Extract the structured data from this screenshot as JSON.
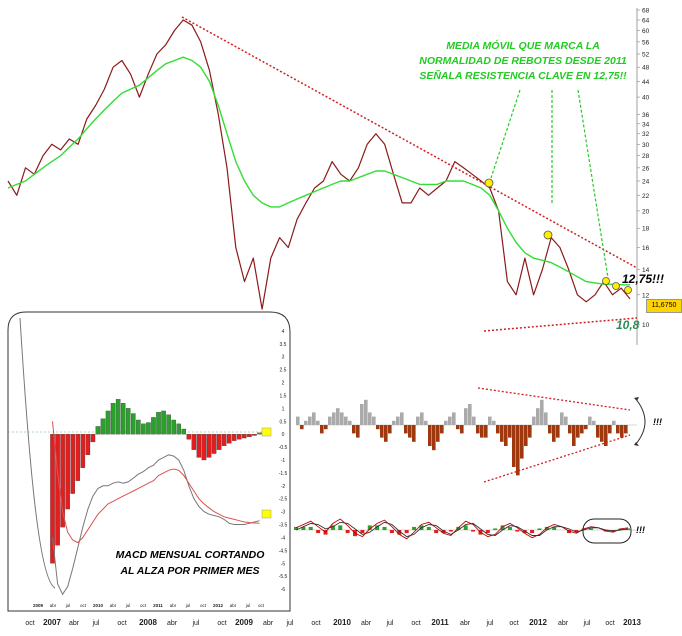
{
  "chart_data": [
    {
      "type": "line",
      "title": "",
      "subtitle": "",
      "xlabel": "",
      "ylabel": "",
      "y_scale": "log",
      "ylim": [
        9,
        68
      ],
      "y_ticks": [
        10,
        12,
        14,
        16,
        18,
        20,
        22,
        24,
        26,
        28,
        30,
        32,
        34,
        36,
        40,
        44,
        48,
        52,
        56,
        60,
        64,
        68
      ],
      "x_tick_labels": [
        "oct",
        "2007",
        "abr",
        "jul",
        "oct",
        "2008",
        "abr",
        "jul",
        "oct",
        "2009",
        "abr",
        "jul",
        "oct",
        "2010",
        "abr",
        "jul",
        "oct",
        "2011",
        "abr",
        "jul",
        "oct",
        "2012",
        "abr",
        "jul",
        "oct",
        "2013"
      ],
      "grid": false,
      "last_price_label": "11,6750",
      "series": [
        {
          "values": [
            24,
            22,
            26,
            25,
            28,
            30,
            29,
            31,
            30,
            35,
            38,
            42,
            48,
            50,
            46,
            40,
            46,
            52,
            55,
            60,
            64,
            62,
            56,
            47,
            36,
            26,
            16,
            13,
            15,
            11,
            15,
            17,
            16,
            19,
            21,
            23,
            24,
            27,
            25,
            24,
            26,
            30,
            32,
            30,
            25,
            21,
            21,
            23,
            22,
            23,
            24,
            27,
            26,
            25,
            24,
            23,
            20,
            13,
            12,
            15,
            12,
            14,
            17,
            16,
            14,
            12,
            11.5,
            12,
            13,
            12,
            12.5,
            11.7
          ]
        },
        {
          "values": [
            23,
            23.5,
            24,
            25,
            26,
            27,
            28,
            29.5,
            31,
            33,
            35,
            37,
            39,
            41,
            42,
            43,
            45,
            47,
            49,
            50,
            51,
            50,
            48,
            44,
            38,
            32,
            27,
            24,
            22,
            21,
            20.5,
            20.5,
            21,
            21.5,
            22,
            22.5,
            23,
            23.5,
            24,
            24,
            24.5,
            25,
            25.5,
            25.5,
            25,
            24.5,
            24,
            23.5,
            23.5,
            23.5,
            24,
            24,
            24,
            23.5,
            23,
            22,
            20,
            18,
            16.5,
            15.5,
            15,
            14.8,
            14.6,
            14.2,
            13.8,
            13.4,
            13,
            12.9,
            12.8,
            12.8,
            12.75,
            12.75
          ]
        }
      ],
      "annotations": [
        "MEDIA MÓVIL QUE MARCA LA\nNORMALIDAD DE REBOTES DESDE 2011\nSEÑALA RESISTENCIA CLAVE EN 12,75!!",
        "12,75!!!",
        "10,8"
      ]
    },
    {
      "type": "bar",
      "title": "",
      "description_label": "MACD MENSUAL CORTANDO\nAL ALZA POR PRIMER MES",
      "ylim": [
        -6.5,
        4.5
      ],
      "y_ticks": [
        4,
        3.5,
        3,
        2.5,
        2,
        1.5,
        1,
        0.5,
        0,
        -0.5,
        -1,
        -1.5,
        -2,
        -2.5,
        -3,
        -3.5,
        -4,
        -4.5,
        -5,
        -5.5,
        -6
      ],
      "x_tick_labels": [
        "2009",
        "abr",
        "jul",
        "oct",
        "2010",
        "abr",
        "jul",
        "oct",
        "2011",
        "abr",
        "jul",
        "oct",
        "2012",
        "abr",
        "jul",
        "oct"
      ],
      "histogram": [
        -5.0,
        -4.3,
        -3.6,
        -2.9,
        -2.3,
        -1.8,
        -1.3,
        -0.8,
        -0.3,
        0.3,
        0.6,
        0.9,
        1.2,
        1.35,
        1.2,
        1.0,
        0.8,
        0.55,
        0.4,
        0.45,
        0.65,
        0.85,
        0.9,
        0.75,
        0.55,
        0.4,
        0.2,
        -0.2,
        -0.6,
        -0.9,
        -1.0,
        -0.9,
        -0.75,
        -0.6,
        -0.45,
        -0.35,
        -0.25,
        -0.2,
        -0.15,
        -0.1,
        -0.05,
        0.05
      ],
      "macd_line": [
        -4.0,
        -5.8,
        -6.2,
        -5.9,
        -5.2,
        -4.4,
        -3.6,
        -2.9,
        -2.4,
        -2.1,
        -2.0,
        -2.0,
        -1.9,
        -1.85,
        -1.9,
        -1.85,
        -1.7,
        -1.55,
        -1.45,
        -1.3,
        -1.2,
        -1.0,
        -0.9,
        -0.8,
        -0.85,
        -1.0,
        -1.4,
        -2.0,
        -2.5,
        -2.8,
        -3.0,
        -3.1,
        -3.15,
        -3.2,
        -3.3,
        -3.45,
        -3.5,
        -3.5,
        -3.5,
        -3.45,
        -3.4,
        -3.35
      ],
      "signal_line": [
        0.5,
        -1.5,
        -3.0,
        -3.8,
        -4.1,
        -4.2,
        -4.0,
        -3.7,
        -3.4,
        -3.1,
        -2.9,
        -2.7,
        -2.6,
        -2.5,
        -2.4,
        -2.3,
        -2.2,
        -2.1,
        -2.0,
        -1.9,
        -1.8,
        -1.6,
        -1.5,
        -1.4,
        -1.35,
        -1.4,
        -1.6,
        -1.9,
        -2.2,
        -2.5,
        -2.7,
        -2.85,
        -3.0,
        -3.1,
        -3.2,
        -3.25,
        -3.3,
        -3.35,
        -3.4,
        -3.42,
        -3.44,
        -3.45
      ],
      "markers": [
        "0.0",
        "-3.4"
      ],
      "colors": {
        "positive": "#2ca02c",
        "negative": "#e02020",
        "macd": "#777777",
        "signal": "#e05050"
      }
    },
    {
      "type": "bar",
      "title": "",
      "note": "!!!",
      "histogram": [
        2,
        -1,
        1,
        2,
        3,
        1,
        -2,
        -1,
        2,
        3,
        4,
        3,
        2,
        1,
        -2,
        -3,
        5,
        6,
        3,
        2,
        -1,
        -3,
        -4,
        -2,
        1,
        2,
        3,
        -2,
        -3,
        -4,
        2,
        3,
        1,
        -5,
        -6,
        -4,
        -2,
        1,
        2,
        3,
        -1,
        -2,
        4,
        5,
        2,
        -2,
        -3,
        -3,
        2,
        1,
        -2,
        -4,
        -5,
        -3,
        -10,
        -12,
        -8,
        -5,
        -3,
        2,
        4,
        6,
        3,
        -2,
        -4,
        -3,
        3,
        2,
        -2,
        -5,
        -3,
        -2,
        -1,
        2,
        1,
        -3,
        -4,
        -5,
        -2,
        1,
        -2,
        -3,
        -2
      ],
      "colors": {
        "positive": "#aaaaaa",
        "negative": "#a0380f"
      }
    },
    {
      "type": "line",
      "title": "",
      "note": "!!!",
      "series_a": [
        0.2,
        0.5,
        0.8,
        0.3,
        -0.2,
        0.6,
        1.0,
        0.4,
        -0.3,
        -0.6,
        0.1,
        0.6,
        0.9,
        0.3,
        -0.4,
        -0.8,
        -0.2,
        0.5,
        0.7,
        0.2,
        -0.3,
        -0.5,
        0.2,
        0.8,
        0.5,
        -0.2,
        -0.6,
        -0.4,
        0.3,
        0.6,
        0.2,
        -0.3,
        -0.7,
        -0.4,
        0.2,
        0.5,
        0.3,
        -0.1,
        -0.3,
        0.1,
        0.3,
        0.2,
        -0.1,
        -0.2,
        0.1,
        0.2
      ],
      "series_b": [
        0.0,
        0.3,
        0.6,
        0.5,
        0.1,
        0.3,
        0.7,
        0.6,
        0.1,
        -0.4,
        -0.2,
        0.3,
        0.7,
        0.5,
        -0.1,
        -0.6,
        -0.4,
        0.2,
        0.5,
        0.4,
        -0.1,
        -0.4,
        0.0,
        0.5,
        0.6,
        0.1,
        -0.4,
        -0.5,
        0.0,
        0.4,
        0.3,
        -0.1,
        -0.5,
        -0.5,
        0.0,
        0.3,
        0.3,
        0.1,
        -0.2,
        0.0,
        0.2,
        0.2,
        0.0,
        -0.1,
        0.0,
        0.1
      ],
      "colors": {
        "a": "#c00000",
        "b": "#333333",
        "up": "#2ca02c",
        "down": "#e02020"
      }
    }
  ]
}
